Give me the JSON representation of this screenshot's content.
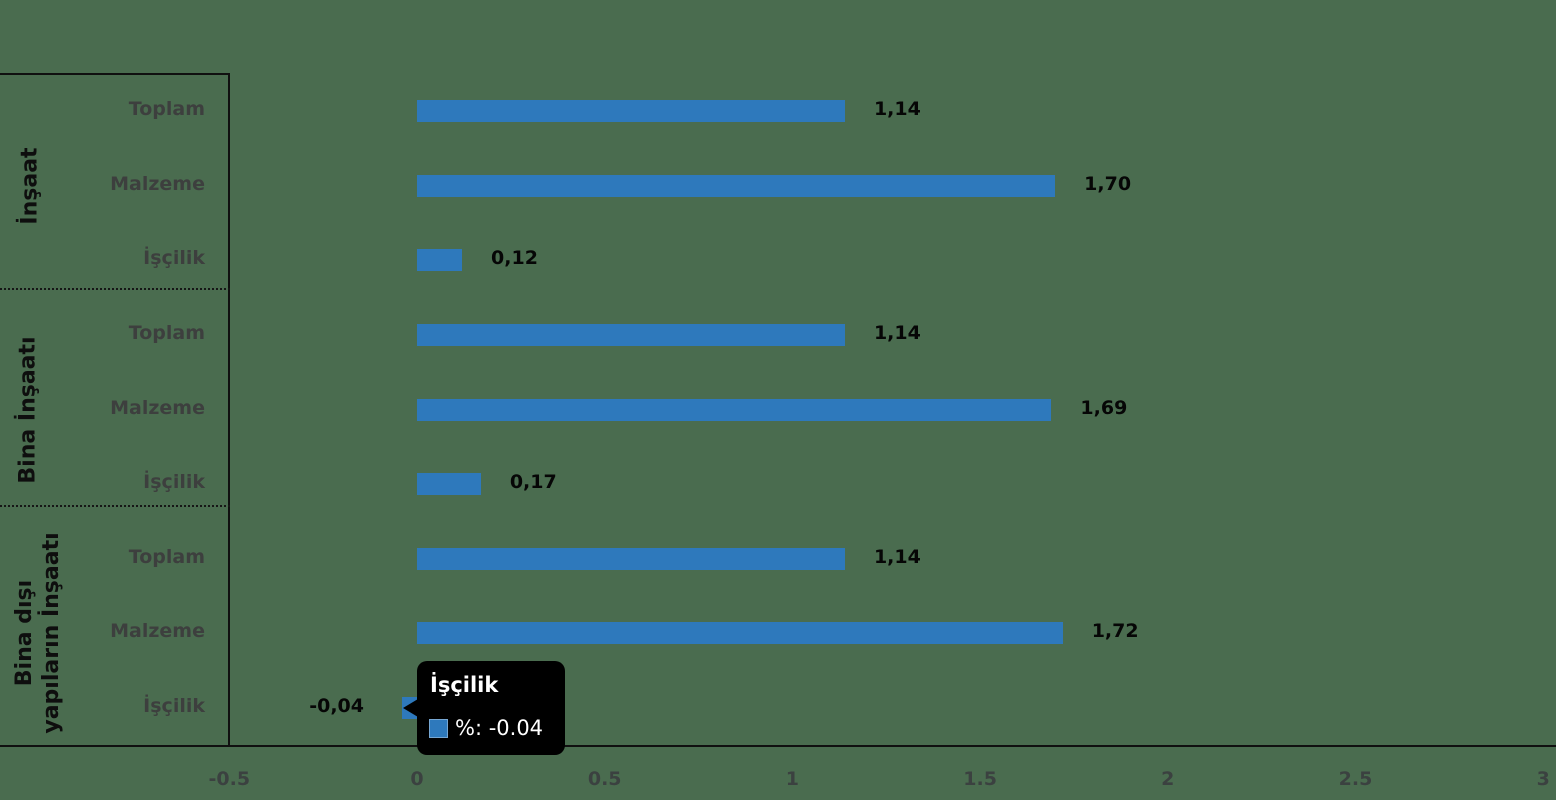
{
  "background_color": "#4a6c4f",
  "bar_color": "#2e79bc",
  "text_colors": {
    "group_label": "#0e0e0e",
    "category_label": "#3d3f3e",
    "value_label": "#060606",
    "tick_label": "#3b4140"
  },
  "chart_data": {
    "type": "bar",
    "orientation": "horizontal",
    "unit": "%",
    "xlim": [
      -0.5,
      3
    ],
    "grid": false,
    "legend": "none",
    "groups": [
      {
        "label": "İnşaat",
        "rows": [
          {
            "label": "Toplam",
            "value": 1.14,
            "value_label": "1,14"
          },
          {
            "label": "Malzeme",
            "value": 1.7,
            "value_label": "1,70"
          },
          {
            "label": "İşçilik",
            "value": 0.12,
            "value_label": "0,12"
          }
        ]
      },
      {
        "label": "Bina İnşaatı",
        "rows": [
          {
            "label": "Toplam",
            "value": 1.14,
            "value_label": "1,14"
          },
          {
            "label": "Malzeme",
            "value": 1.69,
            "value_label": "1,69"
          },
          {
            "label": "İşçilik",
            "value": 0.17,
            "value_label": "0,17"
          }
        ]
      },
      {
        "label": "Bina dışı\nyapıların İnşaatı",
        "rows": [
          {
            "label": "Toplam",
            "value": 1.14,
            "value_label": "1,14"
          },
          {
            "label": "Malzeme",
            "value": 1.72,
            "value_label": "1,72"
          },
          {
            "label": "İşçilik",
            "value": -0.04,
            "value_label": "-0,04"
          }
        ]
      }
    ],
    "x_axis": {
      "tick_labels": [
        "-0.5",
        "0",
        "0.5",
        "1",
        "1.5",
        "2",
        "2.5",
        "3"
      ],
      "tick_values": [
        -0.5,
        0,
        0.5,
        1,
        1.5,
        2,
        2.5,
        3
      ]
    }
  },
  "tooltip": {
    "title": "İşçilik",
    "value_text": "%: -0.04",
    "swatch_color": "#2e79bc",
    "background": "#000000",
    "text_color": "#ffffff"
  }
}
